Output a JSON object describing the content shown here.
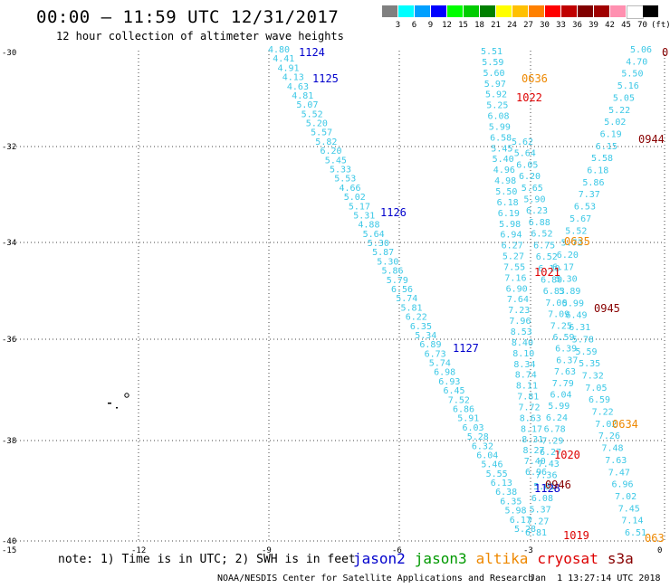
{
  "title": "00:00 – 11:59 UTC 12/31/2017",
  "subtitle": "12 hour collection of altimeter wave heights",
  "colorbar": {
    "labels": [
      "3",
      "6",
      "9",
      "12",
      "15",
      "18",
      "21",
      "24",
      "27",
      "30",
      "33",
      "36",
      "39",
      "42",
      "45",
      "70",
      "(ft)"
    ],
    "colors": [
      "#808080",
      "#00ffff",
      "#00a0ff",
      "#0000ff",
      "#00ff00",
      "#00cc00",
      "#008000",
      "#ffff00",
      "#ffc000",
      "#ff8000",
      "#ff0000",
      "#c00000",
      "#800000",
      "#a00000",
      "#ff90b0",
      "#ffffff",
      "#000000"
    ]
  },
  "map": {
    "lat_labels": [
      "-30",
      "-32",
      "-34",
      "-36",
      "-38",
      "-40"
    ],
    "lon_labels": [
      "-15",
      "-12",
      "-9",
      "-6",
      "-3",
      "0"
    ],
    "colors": {
      "swh": "#3cc8e6",
      "jason2": "#0000cc",
      "jason3": "#009900",
      "altika": "#ee8800",
      "cryosat": "#dd0000",
      "s3a": "#880000"
    },
    "time_labels": [
      {
        "text": "1124",
        "sat": "jason2"
      },
      {
        "text": "1125",
        "sat": "jason2"
      },
      {
        "text": "1126",
        "sat": "jason2"
      },
      {
        "text": "1127",
        "sat": "jason2"
      },
      {
        "text": "1128",
        "sat": "jason2"
      },
      {
        "text": "0636",
        "sat": "altika"
      },
      {
        "text": "0635",
        "sat": "altika"
      },
      {
        "text": "0634",
        "sat": "altika"
      },
      {
        "text": "063",
        "sat": "altika"
      },
      {
        "text": "1022",
        "sat": "cryosat"
      },
      {
        "text": "1021",
        "sat": "cryosat"
      },
      {
        "text": "1020",
        "sat": "cryosat"
      },
      {
        "text": "1019",
        "sat": "cryosat"
      },
      {
        "text": "0944",
        "sat": "s3a"
      },
      {
        "text": "0945",
        "sat": "s3a"
      },
      {
        "text": "0946",
        "sat": "s3a"
      },
      {
        "text": "0",
        "sat": "s3a"
      }
    ],
    "tracks": [
      {
        "id": "jason2-track",
        "values": [
          "4.80",
          "4.41",
          "4.91",
          "4.13",
          "4.63",
          "4.81",
          "5.07",
          "5.52",
          "5.20",
          "5.57",
          "5.82",
          "6.20",
          "5.45",
          "5.33",
          "5.53",
          "4.66",
          "5.02",
          "5.17",
          "5.31",
          "4.88",
          "5.64",
          "5.30",
          "5.87",
          "5.30",
          "5.86",
          "5.79",
          "6.56",
          "5.74",
          "5.81",
          "6.22",
          "6.35",
          "5.34",
          "6.89",
          "6.73",
          "5.74",
          "6.98",
          "6.93",
          "6.45",
          "7.52",
          "6.86",
          "5.91",
          "6.03",
          "5.28",
          "6.32",
          "6.04",
          "5.46",
          "5.55",
          "6.13",
          "6.38",
          "6.35",
          "5.98",
          "6.17",
          "5.28"
        ]
      },
      {
        "id": "altika-track-a",
        "values": [
          "5.51",
          "5.59",
          "5.60",
          "5.97",
          "5.92",
          "5.25",
          "6.08",
          "5.99",
          "6.58",
          "5.45",
          "5.40",
          "4.96",
          "4.98",
          "5.50",
          "6.18",
          "6.19",
          "5.98",
          "6.94",
          "6.27",
          "5.27",
          "7.55",
          "7.16",
          "6.90",
          "7.64",
          "7.23",
          "7.96",
          "8.53",
          "8.40",
          "8.10",
          "8.34",
          "8.74",
          "8.11",
          "7.81",
          "7.72",
          "8.63",
          "8.17",
          "8.31",
          "8.27",
          "7.40",
          "6.96"
        ]
      },
      {
        "id": "altika-track-b",
        "values": [
          "5.62",
          "5.64",
          "6.05",
          "6.20",
          "5.65",
          "5.90",
          "6.23",
          "6.88",
          "6.52",
          "6.75",
          "6.52",
          "6.10",
          "6.80",
          "6.83",
          "7.00",
          "7.09",
          "7.25",
          "6.59",
          "6.39",
          "6.37",
          "7.63",
          "7.79",
          "6.04",
          "5.99",
          "6.24",
          "6.78",
          "7.29",
          "6.27",
          "7.43",
          "7.36",
          "5.61",
          "6.08",
          "5.37",
          "7.27",
          "6.81"
        ]
      },
      {
        "id": "s3a-track",
        "values": [
          "5.06",
          "4.70",
          "5.50",
          "5.16",
          "5.05",
          "5.22",
          "5.02",
          "6.19",
          "6.15",
          "5.58",
          "6.18",
          "5.86",
          "7.37",
          "6.53",
          "5.67",
          "5.52",
          "5.72",
          "6.20",
          "6.17",
          "5.30",
          "5.89",
          "5.99",
          "6.49",
          "6.31",
          "5.78",
          "5.59",
          "5.35",
          "7.32",
          "7.05",
          "6.59",
          "7.22",
          "7.02",
          "7.26",
          "7.48",
          "7.63",
          "7.47",
          "6.96",
          "7.02",
          "7.45",
          "7.14",
          "6.51"
        ]
      }
    ]
  },
  "note": "note: 1) Time is in UTC; 2) SWH is in feet",
  "legend": [
    {
      "label": "jason2",
      "color": "#0000cc"
    },
    {
      "label": "jason3",
      "color": "#009900"
    },
    {
      "label": "altika",
      "color": "#ee8800"
    },
    {
      "label": "cryosat",
      "color": "#dd0000"
    },
    {
      "label": "s3a",
      "color": "#880000"
    }
  ],
  "credit": "NOAA/NESDIS Center for Satellite Applications and Research",
  "timestamp": "Jan  1 13:27:14 UTC 2018"
}
